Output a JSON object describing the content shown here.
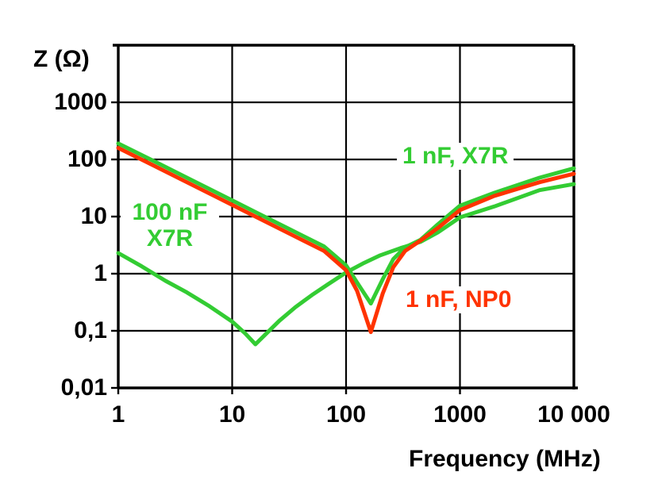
{
  "chart_data": {
    "type": "line",
    "title": "",
    "x_axis": {
      "label": "Frequency (MHz)",
      "scale": "log",
      "min": 1,
      "max": 10000,
      "ticks": [
        {
          "value": 1,
          "label": "1"
        },
        {
          "value": 10,
          "label": "10"
        },
        {
          "value": 100,
          "label": "100"
        },
        {
          "value": 1000,
          "label": "1000"
        },
        {
          "value": 10000,
          "label": "10 000"
        }
      ]
    },
    "y_axis": {
      "label": "Z (Ω)",
      "scale": "log",
      "min": 0.01,
      "max": 10000,
      "ticks": [
        {
          "value": 1000,
          "label": "1000"
        },
        {
          "value": 100,
          "label": "100"
        },
        {
          "value": 10,
          "label": "10"
        },
        {
          "value": 1,
          "label": "1"
        },
        {
          "value": 0.1,
          "label": "0,1"
        },
        {
          "value": 0.01,
          "label": "0,01"
        }
      ]
    },
    "grid": true,
    "legend_position": "inline-annotations",
    "colors": {
      "green": "#33cc33",
      "red": "#ff3300",
      "axis": "#000000"
    },
    "series": [
      {
        "name": "100 nF, X7R",
        "color": "#33cc33",
        "points": [
          [
            1,
            2.3
          ],
          [
            1.6,
            1.35
          ],
          [
            2.6,
            0.75
          ],
          [
            4,
            0.47
          ],
          [
            6.3,
            0.27
          ],
          [
            10,
            0.145
          ],
          [
            13,
            0.09
          ],
          [
            16,
            0.058
          ],
          [
            20,
            0.09
          ],
          [
            26,
            0.15
          ],
          [
            36,
            0.26
          ],
          [
            50,
            0.42
          ],
          [
            70,
            0.66
          ],
          [
            100,
            1.05
          ],
          [
            140,
            1.5
          ],
          [
            200,
            2.1
          ],
          [
            300,
            2.8
          ],
          [
            450,
            3.6
          ],
          [
            640,
            5.3
          ],
          [
            1000,
            9.7
          ],
          [
            2000,
            15
          ],
          [
            5000,
            29
          ],
          [
            10000,
            37
          ]
        ]
      },
      {
        "name": "1 nF, X7R",
        "color": "#33cc33",
        "points": [
          [
            1,
            190
          ],
          [
            2,
            96
          ],
          [
            4,
            48
          ],
          [
            8,
            24
          ],
          [
            16,
            12
          ],
          [
            32,
            6
          ],
          [
            64,
            3
          ],
          [
            100,
            1.4
          ],
          [
            125,
            0.7
          ],
          [
            165,
            0.3
          ],
          [
            210,
            0.8
          ],
          [
            260,
            1.8
          ],
          [
            330,
            2.9
          ],
          [
            450,
            3.9
          ],
          [
            640,
            7.3
          ],
          [
            1000,
            15.5
          ],
          [
            2000,
            26
          ],
          [
            5000,
            48
          ],
          [
            10000,
            70
          ]
        ]
      },
      {
        "name": "1 nF, NP0",
        "color": "#ff3300",
        "points": [
          [
            1,
            159
          ],
          [
            2,
            80
          ],
          [
            4,
            40
          ],
          [
            8,
            20
          ],
          [
            16,
            10
          ],
          [
            32,
            5
          ],
          [
            64,
            2.5
          ],
          [
            100,
            1.15
          ],
          [
            125,
            0.5
          ],
          [
            165,
            0.095
          ],
          [
            210,
            0.45
          ],
          [
            260,
            1.3
          ],
          [
            330,
            2.5
          ],
          [
            450,
            3.8
          ],
          [
            640,
            6.3
          ],
          [
            1000,
            13
          ],
          [
            2000,
            23
          ],
          [
            5000,
            40
          ],
          [
            10000,
            56
          ]
        ]
      }
    ],
    "annotations": [
      {
        "text": "1 nF, X7R",
        "color": "#33cc33"
      },
      {
        "lines": [
          "100 nF",
          "X7R"
        ],
        "color": "#33cc33"
      },
      {
        "text": "1 nF, NP0",
        "color": "#ff3300"
      }
    ]
  }
}
